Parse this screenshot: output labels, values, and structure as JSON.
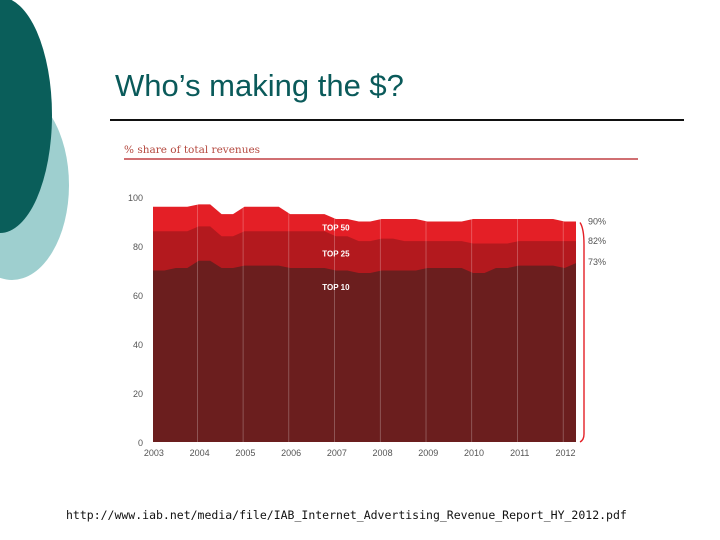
{
  "slide": {
    "title": "Who’s making the $?",
    "source": "http://www.iab.net/media/file/IAB_Internet_Advertising_Revenue_Report_HY_2012.pdf"
  },
  "colors": {
    "deco_dark": "#0a5e5a",
    "deco_light": "#9ecfcf",
    "top50": "#e41f26",
    "top25": "#b3191e",
    "top10": "#6b1e1e",
    "chart_text": "#b54a40",
    "axis_text": "#555555"
  },
  "chart_data": {
    "type": "area",
    "title": "% share of total revenues",
    "xlabel": "",
    "ylabel": "",
    "ylim": [
      0,
      100
    ],
    "yticks": [
      0,
      20,
      40,
      60,
      80,
      100
    ],
    "year_labels": [
      "2003",
      "2004",
      "2005",
      "2006",
      "2007",
      "2008",
      "2009",
      "2010",
      "2011",
      "2012"
    ],
    "x": [
      2003.0,
      2003.25,
      2003.5,
      2003.75,
      2004.0,
      2004.25,
      2004.5,
      2004.75,
      2005.0,
      2005.25,
      2005.5,
      2005.75,
      2006.0,
      2006.25,
      2006.5,
      2006.75,
      2007.0,
      2007.25,
      2007.5,
      2007.75,
      2008.0,
      2008.25,
      2008.5,
      2008.75,
      2009.0,
      2009.25,
      2009.5,
      2009.75,
      2010.0,
      2010.25,
      2010.5,
      2010.75,
      2011.0,
      2011.25,
      2011.5,
      2011.75,
      2012.0,
      2012.25
    ],
    "series": [
      {
        "name": "TOP 10",
        "end_label": "73%",
        "values": [
          70,
          70,
          71,
          71,
          74,
          74,
          71,
          71,
          72,
          72,
          72,
          72,
          71,
          71,
          71,
          71,
          70,
          70,
          69,
          69,
          70,
          70,
          70,
          70,
          71,
          71,
          71,
          71,
          69,
          69,
          71,
          71,
          72,
          72,
          72,
          72,
          71,
          73
        ]
      },
      {
        "name": "TOP 25",
        "end_label": "82%",
        "values": [
          86,
          86,
          86,
          86,
          88,
          88,
          84,
          84,
          86,
          86,
          86,
          86,
          86,
          86,
          86,
          86,
          84,
          84,
          82,
          82,
          83,
          83,
          82,
          82,
          82,
          82,
          82,
          82,
          81,
          81,
          81,
          81,
          82,
          82,
          82,
          82,
          82,
          82
        ]
      },
      {
        "name": "TOP 50",
        "end_label": "90%",
        "values": [
          96,
          96,
          96,
          96,
          97,
          97,
          93,
          93,
          96,
          96,
          96,
          96,
          93,
          93,
          93,
          93,
          91,
          91,
          90,
          90,
          91,
          91,
          91,
          91,
          90,
          90,
          90,
          90,
          91,
          91,
          91,
          91,
          91,
          91,
          91,
          91,
          90,
          90
        ]
      }
    ],
    "grid": true
  }
}
